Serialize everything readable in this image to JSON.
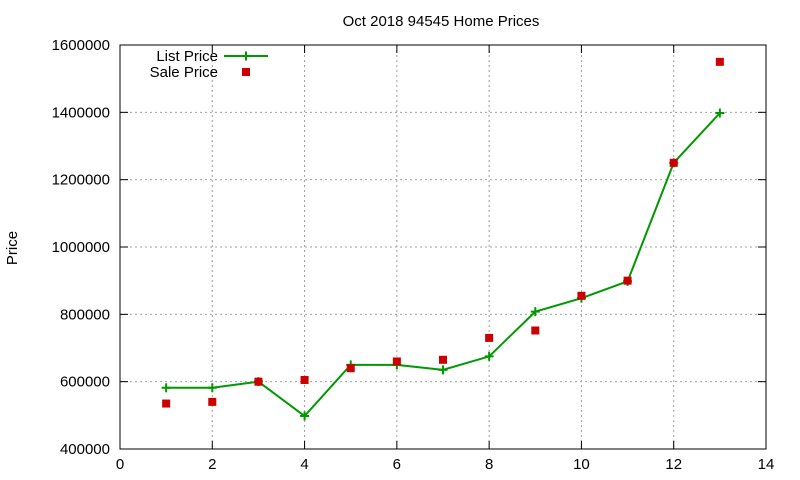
{
  "chart_data": {
    "type": "line",
    "title": "Oct 2018 94545 Home Prices",
    "xlabel": "",
    "ylabel": "Price",
    "xlim": [
      0,
      14
    ],
    "ylim": [
      400000,
      1600000
    ],
    "xticks": [
      0,
      2,
      4,
      6,
      8,
      10,
      12,
      14
    ],
    "yticks": [
      400000,
      600000,
      800000,
      1000000,
      1200000,
      1400000,
      1600000
    ],
    "grid": true,
    "legend_position": "top-left",
    "series": [
      {
        "name": "List Price",
        "style": "linespoints",
        "color": "#009900",
        "x": [
          1,
          2,
          3,
          4,
          5,
          6,
          7,
          8,
          9,
          10,
          11,
          12,
          13
        ],
        "y": [
          582000,
          582000,
          600000,
          498000,
          650000,
          650000,
          635000,
          675000,
          808000,
          848000,
          898000,
          1250000,
          1398000
        ]
      },
      {
        "name": "Sale Price",
        "style": "points",
        "color": "#cc0000",
        "x": [
          1,
          2,
          3,
          4,
          5,
          6,
          7,
          8,
          9,
          10,
          11,
          12,
          13
        ],
        "y": [
          535000,
          540000,
          600000,
          605000,
          640000,
          660000,
          665000,
          730000,
          752000,
          855000,
          900000,
          1250000,
          1550000
        ]
      }
    ]
  }
}
